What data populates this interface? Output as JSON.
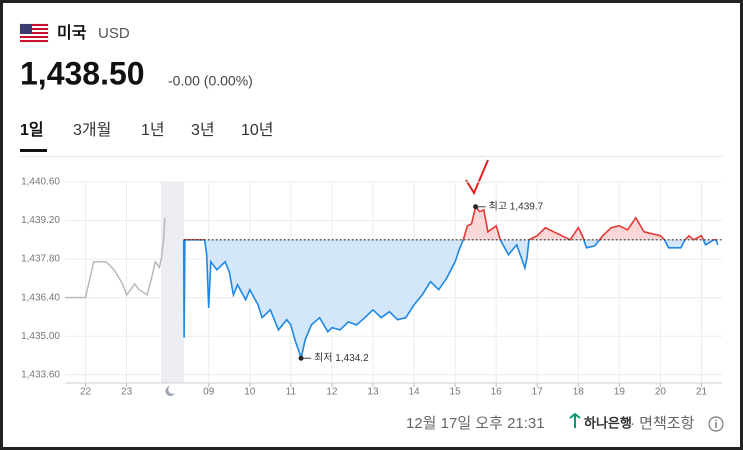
{
  "header": {
    "country": "미국",
    "currency": "USD",
    "price": "1,438.50",
    "change": "-0.00 (0.00%)"
  },
  "tabs": [
    "1일",
    "3개월",
    "1년",
    "3년",
    "10년"
  ],
  "chart_data": {
    "type": "line",
    "baseline": 1438.5,
    "grid": true,
    "xlim": [
      -0.5,
      15.5
    ],
    "xticks": [
      {
        "value": 0,
        "label": "22"
      },
      {
        "value": 1,
        "label": "23"
      },
      {
        "value": 3,
        "label": "09"
      },
      {
        "value": 4,
        "label": "10"
      },
      {
        "value": 5,
        "label": "11"
      },
      {
        "value": 6,
        "label": "12"
      },
      {
        "value": 7,
        "label": "13"
      },
      {
        "value": 8,
        "label": "14"
      },
      {
        "value": 9,
        "label": "15"
      },
      {
        "value": 10,
        "label": "16"
      },
      {
        "value": 11,
        "label": "17"
      },
      {
        "value": 12,
        "label": "18"
      },
      {
        "value": 13,
        "label": "19"
      },
      {
        "value": 14,
        "label": "20"
      },
      {
        "value": 15,
        "label": "21"
      }
    ],
    "ylim": [
      1433.3,
      1440.6
    ],
    "yticks": [
      {
        "value": 1440.6,
        "label": "1,440.60"
      },
      {
        "value": 1439.2,
        "label": "1,439.20"
      },
      {
        "value": 1437.8,
        "label": "1,437.80"
      },
      {
        "value": 1436.4,
        "label": "1,436.40"
      },
      {
        "value": 1435.0,
        "label": "1,435.00"
      },
      {
        "value": 1433.6,
        "label": "1,433.60"
      }
    ],
    "series": [
      {
        "color": "#b5b5b5",
        "x": [
          -0.5,
          0,
          0.1,
          0.2,
          0.5,
          0.7,
          0.9,
          1.0,
          1.2,
          1.3,
          1.5,
          1.6,
          1.7,
          1.8,
          1.85,
          1.9,
          1.93
        ],
        "values": [
          1436.4,
          1436.4,
          1437.05,
          1437.7,
          1437.7,
          1437.4,
          1436.9,
          1436.5,
          1436.9,
          1436.7,
          1436.5,
          1437.05,
          1437.7,
          1437.5,
          1437.85,
          1438.5,
          1439.3
        ]
      },
      {
        "color": "#1e88e5",
        "up_color": "#e53935",
        "fill": "#d4e6fa",
        "up_fill": "#fad7d7",
        "x": [
          2.39,
          2.4,
          2.42,
          2.9,
          2.95,
          3.0,
          3.05,
          3.2,
          3.4,
          3.5,
          3.6,
          3.7,
          3.9,
          4.0,
          4.2,
          4.3,
          4.5,
          4.7,
          4.9,
          5.0,
          5.1,
          5.2,
          5.25,
          5.35,
          5.5,
          5.7,
          5.9,
          6.0,
          6.2,
          6.4,
          6.6,
          6.8,
          7.0,
          7.2,
          7.4,
          7.6,
          7.8,
          8.0,
          8.2,
          8.4,
          8.6,
          8.8,
          9.0,
          9.1,
          9.2,
          9.3,
          9.4,
          9.5,
          9.6,
          9.7,
          9.8,
          10.0,
          10.1,
          10.3,
          10.5,
          10.7,
          10.75,
          10.8,
          11.0,
          11.2,
          11.4,
          11.6,
          11.8,
          12.0,
          12.1,
          12.2,
          12.4,
          12.6,
          12.8,
          13.0,
          13.2,
          13.4,
          13.6,
          13.8,
          14.0,
          14.1,
          14.2,
          14.5,
          14.6,
          14.7,
          14.8,
          15.0,
          15.1,
          15.3,
          15.35,
          15.4
        ],
        "values": [
          1438.5,
          1434.95,
          1438.5,
          1438.5,
          1437.96,
          1436.03,
          1437.7,
          1437.41,
          1437.7,
          1437.34,
          1436.5,
          1436.87,
          1436.32,
          1436.69,
          1436.14,
          1435.67,
          1435.96,
          1435.23,
          1435.6,
          1435.41,
          1434.87,
          1434.43,
          1434.2,
          1434.87,
          1435.41,
          1435.67,
          1435.16,
          1435.31,
          1435.23,
          1435.52,
          1435.41,
          1435.67,
          1435.96,
          1435.67,
          1435.89,
          1435.6,
          1435.67,
          1436.14,
          1436.5,
          1436.98,
          1436.69,
          1437.12,
          1437.7,
          1438.14,
          1438.5,
          1439.01,
          1439.08,
          1439.7,
          1439.52,
          1439.59,
          1438.79,
          1439.01,
          1438.5,
          1437.96,
          1438.32,
          1437.48,
          1437.85,
          1438.5,
          1438.65,
          1438.94,
          1438.79,
          1438.65,
          1438.5,
          1438.94,
          1438.65,
          1438.21,
          1438.28,
          1438.65,
          1438.94,
          1439.01,
          1438.86,
          1439.3,
          1438.79,
          1438.72,
          1438.65,
          1438.5,
          1438.21,
          1438.21,
          1438.5,
          1438.65,
          1438.5,
          1438.65,
          1438.32,
          1438.5,
          1438.5,
          1438.32
        ]
      }
    ],
    "annotations": [
      {
        "text": "최고 1,439.7",
        "x": 9.5,
        "y": 1439.7
      },
      {
        "text": "최저 1,434.2",
        "x": 5.25,
        "y": 1434.2
      }
    ]
  },
  "footer": {
    "timestamp": "12월 17일 오후 21:31",
    "source": "하나은행",
    "disclaimer": "· 면책조항"
  }
}
